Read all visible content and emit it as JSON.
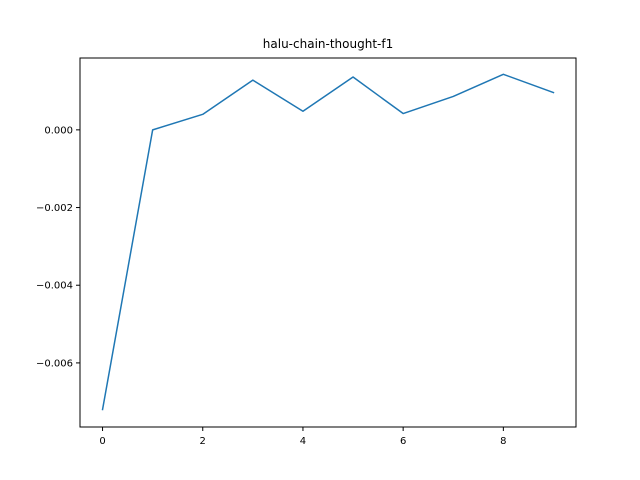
{
  "chart_data": {
    "type": "line",
    "title": "halu-chain-thought-f1",
    "xlabel": "",
    "ylabel": "",
    "xlim": [
      -0.45,
      9.45
    ],
    "ylim": [
      -0.00765,
      0.00185
    ],
    "xticks": [
      0,
      2,
      4,
      6,
      8
    ],
    "xtick_labels": [
      "0",
      "2",
      "4",
      "6",
      "8"
    ],
    "yticks": [
      0.0,
      -0.002,
      -0.004,
      -0.006
    ],
    "ytick_labels": [
      "0.000",
      "−0.002",
      "−0.004",
      "−0.006"
    ],
    "grid": false,
    "series": [
      {
        "color": "#1f77b4",
        "x": [
          0,
          1,
          2,
          3,
          4,
          5,
          6,
          7,
          8,
          9
        ],
        "y": [
          -0.0072,
          0.0,
          0.0004,
          0.00128,
          0.00048,
          0.00136,
          0.00042,
          0.00086,
          0.00143,
          0.00096
        ]
      }
    ]
  }
}
